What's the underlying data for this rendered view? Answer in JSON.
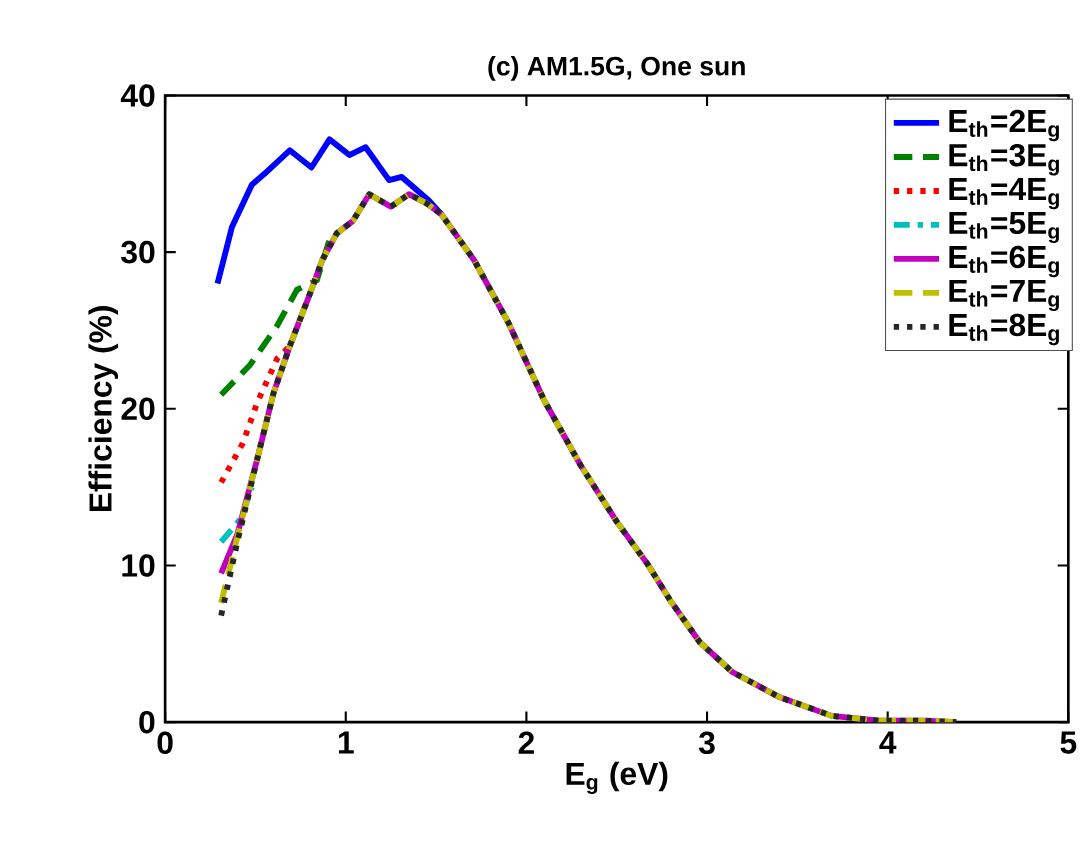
{
  "chart_data": {
    "type": "line",
    "title": "(c) AM1.5G, One sun",
    "xlabel": "E$_{g}$ (eV)",
    "ylabel": "Efficiency (%)",
    "xlim": [
      0,
      5
    ],
    "ylim": [
      0,
      40
    ],
    "xticks": [
      0,
      1,
      2,
      3,
      4,
      5
    ],
    "yticks": [
      0,
      10,
      20,
      30,
      40
    ],
    "grid": false,
    "legend": "top right",
    "marker": "none",
    "series": [
      {
        "name": "E$_{th}$=2E$_{g}$",
        "color": "#0000ff",
        "line_style": "solid",
        "x": [
          0.29,
          0.37,
          0.48,
          0.55,
          0.69,
          0.81,
          0.91,
          1.02,
          1.11,
          1.24,
          1.31,
          1.46,
          1.53
        ],
        "values": [
          28,
          31.6,
          34.3,
          35,
          36.5,
          35.4,
          37.2,
          36.2,
          36.7,
          34.6,
          34.8,
          33.3,
          32.4
        ]
      },
      {
        "name": "E$_{th}$=3E$_{g}$",
        "color": "#008000",
        "line_style": "dashed",
        "x": [
          0.31,
          0.47,
          0.62,
          0.73,
          0.84,
          0.91
        ],
        "values": [
          20.9,
          22.8,
          25.3,
          27.6,
          28.2,
          30.8
        ]
      },
      {
        "name": "E$_{th}$=4E$_{g}$",
        "color": "#ff0000",
        "line_style": "dotted",
        "x": [
          0.31,
          0.43,
          0.51,
          0.62,
          0.69
        ],
        "values": [
          15.3,
          17.8,
          20.4,
          23.2,
          24
        ]
      },
      {
        "name": "E$_{th}$=5E$_{g}$",
        "color": "#00bfbf",
        "line_style": "dashdot",
        "x": [
          0.31,
          0.42,
          0.48
        ],
        "values": [
          11.5,
          13,
          15
        ]
      },
      {
        "name": "E$_{th}$=6E$_{g}$",
        "color": "#bf00bf",
        "line_style": "solid",
        "x": [
          0.31,
          0.4,
          0.51,
          0.6,
          0.69,
          0.8,
          0.87,
          0.95,
          1.04,
          1.13,
          1.25,
          1.35,
          1.45,
          1.53,
          1.71,
          1.9,
          2.1,
          2.3,
          2.5,
          2.67,
          2.8,
          2.96,
          3.14,
          3.4,
          3.69,
          3.95,
          4.2,
          4.38
        ],
        "values": [
          9.5,
          12,
          16.8,
          21,
          24,
          27.3,
          29.5,
          31.2,
          32,
          33.7,
          32.9,
          33.7,
          33.1,
          32.4,
          29.5,
          25.5,
          20.5,
          16.4,
          12.8,
          10.1,
          7.7,
          5.1,
          3.2,
          1.6,
          0.4,
          0.1,
          0.1,
          0
        ]
      },
      {
        "name": "E$_{th}$=7E$_{g}$",
        "color": "#bfbf00",
        "line_style": "dashed",
        "x": [
          0.31,
          0.4,
          0.51,
          0.6,
          0.69,
          0.8,
          0.87,
          0.95,
          1.04,
          1.13,
          1.25,
          1.35,
          1.45,
          1.53,
          1.71,
          1.9,
          2.1,
          2.3,
          2.5,
          2.67,
          2.8,
          2.96,
          3.14,
          3.4,
          3.69,
          3.95,
          4.2,
          4.38
        ],
        "values": [
          7.6,
          11.8,
          16.8,
          21,
          24,
          27.3,
          29.5,
          31.2,
          32,
          33.7,
          32.9,
          33.7,
          33.1,
          32.4,
          29.5,
          25.5,
          20.5,
          16.4,
          12.8,
          10.1,
          7.7,
          5.1,
          3.2,
          1.6,
          0.4,
          0.1,
          0.1,
          0
        ]
      },
      {
        "name": "E$_{th}$=8E$_{g}$",
        "color": "#262626",
        "line_style": "dotted",
        "x": [
          0.31,
          0.4,
          0.51,
          0.6,
          0.69,
          0.8,
          0.87,
          0.95,
          1.04,
          1.13,
          1.25,
          1.35,
          1.45,
          1.53,
          1.71,
          1.9,
          2.1,
          2.3,
          2.5,
          2.67,
          2.8,
          2.96,
          3.14,
          3.4,
          3.69,
          3.95,
          4.2,
          4.38
        ],
        "values": [
          6.8,
          11.5,
          16.8,
          21,
          24,
          27.3,
          29.5,
          31.2,
          32,
          33.7,
          32.9,
          33.7,
          33.1,
          32.4,
          29.5,
          25.5,
          20.5,
          16.4,
          12.8,
          10.1,
          7.7,
          5.1,
          3.2,
          1.6,
          0.4,
          0.1,
          0.1,
          0
        ]
      }
    ]
  }
}
